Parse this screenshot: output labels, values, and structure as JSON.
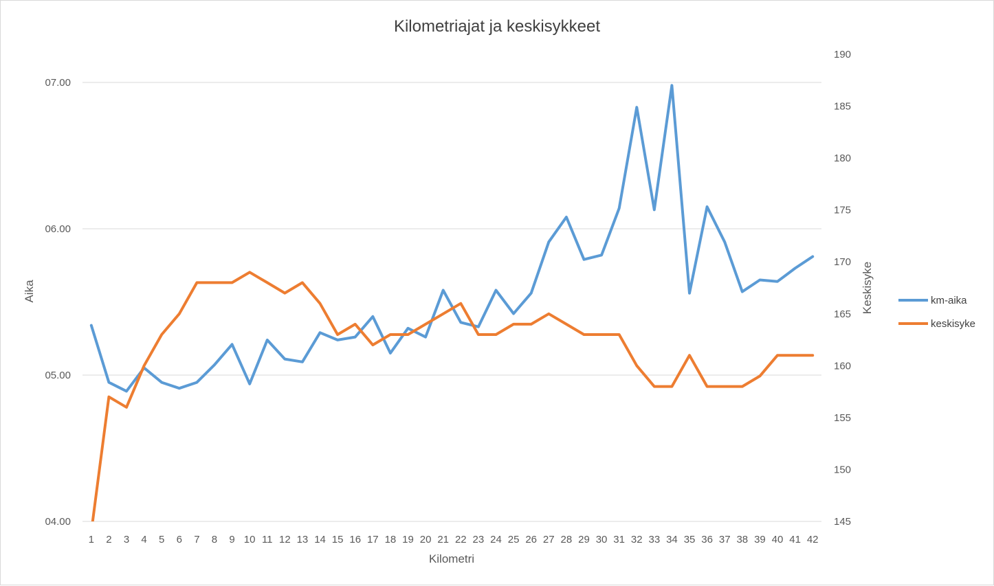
{
  "chart_data": {
    "type": "line",
    "title": "Kilometriajat ja keskisykkeet",
    "xlabel": "Kilometri",
    "ylabel": "Aika",
    "y2label": "Keskisyke",
    "categories": [
      "1",
      "2",
      "3",
      "4",
      "5",
      "6",
      "7",
      "8",
      "9",
      "10",
      "11",
      "12",
      "13",
      "14",
      "15",
      "16",
      "17",
      "18",
      "19",
      "20",
      "21",
      "22",
      "23",
      "24",
      "25",
      "26",
      "27",
      "28",
      "29",
      "30",
      "31",
      "32",
      "33",
      "34",
      "35",
      "36",
      "37",
      "38",
      "39",
      "40",
      "41",
      "42"
    ],
    "y_axis": {
      "min": 4.0,
      "max": 7.0,
      "ticks": [
        4.0,
        5.0,
        6.0,
        7.0
      ],
      "tick_labels": [
        "04.00",
        "05.00",
        "06.00",
        "07.00"
      ]
    },
    "y2_axis": {
      "min": 145,
      "max": 190,
      "ticks": [
        145,
        150,
        155,
        160,
        165,
        170,
        175,
        180,
        185,
        190
      ]
    },
    "grid": true,
    "legend_position": "right",
    "series": [
      {
        "name": "km-aika",
        "axis": "primary",
        "color": "#5b9bd5",
        "values": [
          5.34,
          4.95,
          4.89,
          5.05,
          4.95,
          4.91,
          4.95,
          5.07,
          5.21,
          4.94,
          5.24,
          5.11,
          5.09,
          5.29,
          5.24,
          5.26,
          5.4,
          5.15,
          5.32,
          5.26,
          5.58,
          5.36,
          5.33,
          5.58,
          5.42,
          5.56,
          5.91,
          6.08,
          5.79,
          5.82,
          6.14,
          6.83,
          6.13,
          6.98,
          5.56,
          6.15,
          5.91,
          5.57,
          5.65,
          5.64,
          5.73,
          5.81
        ]
      },
      {
        "name": "keskisyke",
        "axis": "secondary",
        "color": "#ed7d31",
        "values": [
          144,
          157,
          156,
          160,
          163,
          165,
          168,
          168,
          168,
          169,
          168,
          167,
          168,
          166,
          163,
          164,
          162,
          163,
          163,
          164,
          165,
          166,
          163,
          163,
          164,
          164,
          165,
          164,
          163,
          163,
          163,
          160,
          158,
          158,
          161,
          158,
          158,
          158,
          159,
          161,
          161,
          161
        ]
      }
    ]
  }
}
